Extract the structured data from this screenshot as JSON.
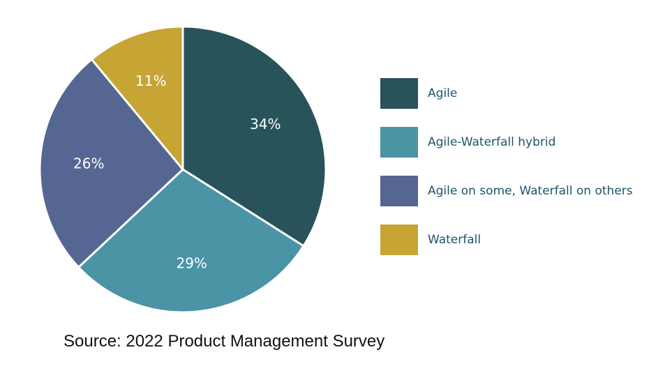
{
  "chart_data": {
    "type": "pie",
    "categories": [
      "Agile",
      "Agile-Waterfall hybrid",
      "Agile on some, Waterfall on others",
      "Waterfall"
    ],
    "values": [
      34,
      29,
      26,
      11
    ],
    "data_labels": [
      "34%",
      "29%",
      "26%",
      "11%"
    ],
    "colors": [
      "#28535a",
      "#4a94a6",
      "#556693",
      "#c6a535"
    ],
    "legend_position": "right",
    "start": "12 o'clock, clockwise"
  },
  "source_note": "Source: 2022 Product Management Survey"
}
